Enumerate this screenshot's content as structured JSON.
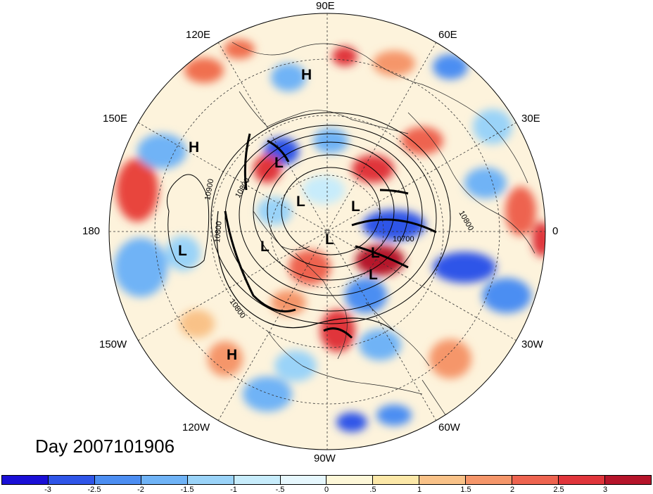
{
  "map": {
    "projection": "north polar stereographic",
    "longitude_labels": {
      "lon_90E": "90E",
      "lon_60E": "60E",
      "lon_120E": "120E",
      "lon_30E": "30E",
      "lon_150E": "150E",
      "lon_180": "180",
      "lon_0": "0",
      "lon_150W": "150W",
      "lon_30W": "30W",
      "lon_120W": "120W",
      "lon_60W": "60W",
      "lon_90W": "90W"
    },
    "contour_labels": {
      "c1": "10900",
      "c2": "10800",
      "c3": "10800",
      "c4": "10800",
      "c5": "10700",
      "c6": "10800"
    },
    "pressure_centers": {
      "h1": "H",
      "h2": "H",
      "h3": "H",
      "l1": "L",
      "l2": "L",
      "l3": "L",
      "l4": "L",
      "l5": "L",
      "l6": "L",
      "l7": "L",
      "l8": "L"
    }
  },
  "day_label": "Day 2007101906",
  "colorbar": {
    "colors": [
      "#1a0fd6",
      "#2f55e8",
      "#4c8ef2",
      "#6fb3f6",
      "#9ad3f8",
      "#c7ecfb",
      "#e6f7fd",
      "#fdf7d8",
      "#fce8a8",
      "#f9c288",
      "#f5966a",
      "#ee6450",
      "#e0353b",
      "#b5142a"
    ],
    "ticks": [
      "-3",
      "-2.5",
      "-2",
      "-1.5",
      "-1",
      "-.5",
      "0",
      ".5",
      "1",
      "1.5",
      "2",
      "2.5",
      "3"
    ]
  }
}
